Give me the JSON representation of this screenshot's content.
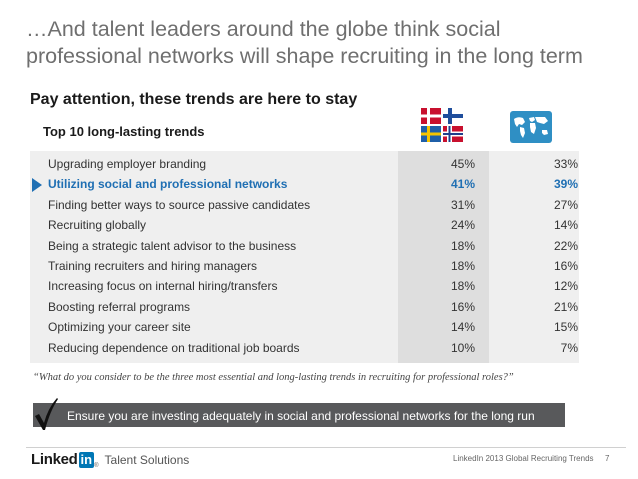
{
  "slide": {
    "title_line1": "…And talent leaders around the globe think social",
    "title_line2": "professional networks will shape recruiting in the long term",
    "subtitle": "Pay attention, these trends are here to stay",
    "table_heading": "Top 10 long-lasting trends"
  },
  "columns": {
    "col1_icon": "nordic-flags-icon",
    "col2_icon": "world-map-icon"
  },
  "rows": [
    {
      "label": "Upgrading employer branding",
      "v1": "45%",
      "v2": "33%"
    },
    {
      "label": "Utilizing social and professional networks",
      "v1": "41%",
      "v2": "39%"
    },
    {
      "label": "Finding better ways to source passive candidates",
      "v1": "31%",
      "v2": "27%"
    },
    {
      "label": "Recruiting globally",
      "v1": "24%",
      "v2": "14%"
    },
    {
      "label": "Being a strategic talent advisor to the business",
      "v1": "18%",
      "v2": "22%"
    },
    {
      "label": "Training recruiters and hiring managers",
      "v1": "18%",
      "v2": "16%"
    },
    {
      "label": "Increasing focus on internal hiring/transfers",
      "v1": "18%",
      "v2": "12%"
    },
    {
      "label": "Boosting referral programs",
      "v1": "16%",
      "v2": "21%"
    },
    {
      "label": "Optimizing your career site",
      "v1": "14%",
      "v2": "15%"
    },
    {
      "label": "Reducing dependence on traditional job boards",
      "v1": "10%",
      "v2": "7%"
    }
  ],
  "question": "“What do you consider to be the three most essential and long-lasting trends in recruiting for professional roles?”",
  "banner": {
    "text": "Ensure you are investing adequately in social and professional networks for the long run",
    "icon": "checkmark-icon"
  },
  "footer": {
    "logo_linked": "Linked",
    "logo_in": "in",
    "logo_reg": "®",
    "logo_product": "Talent Solutions",
    "source": "LinkedIn 2013 Global Recruiting Trends",
    "page": "7"
  },
  "colors": {
    "highlight": "#1f6fb3",
    "banner": "#58595b",
    "table_bg": "#efefef",
    "column_bg": "#dedede"
  }
}
